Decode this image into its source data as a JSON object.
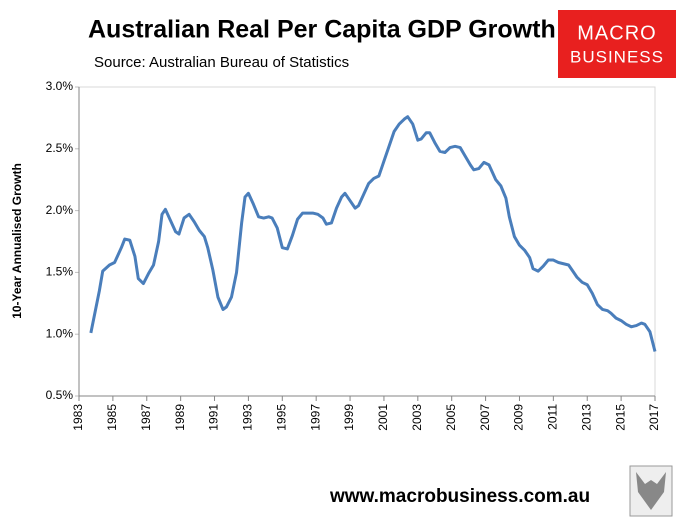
{
  "chart_data": {
    "type": "line",
    "title": "Australian Real Per Capita GDP Growth",
    "subtitle": "Source: Australian Bureau of Statistics",
    "y_label": "10-Year Annualised Growth",
    "x": [
      1983.7,
      1984.2,
      1984.4,
      1984.8,
      1985.1,
      1985.5,
      1985.7,
      1986.0,
      1986.3,
      1986.5,
      1986.8,
      1987.1,
      1987.4,
      1987.7,
      1987.9,
      1988.1,
      1988.4,
      1988.7,
      1988.9,
      1989.2,
      1989.5,
      1989.8,
      1990.1,
      1990.4,
      1990.6,
      1990.9,
      1991.2,
      1991.5,
      1991.7,
      1992.0,
      1992.3,
      1992.6,
      1992.8,
      1993.0,
      1993.3,
      1993.6,
      1993.9,
      1994.2,
      1994.4,
      1994.7,
      1995.0,
      1995.3,
      1995.6,
      1995.9,
      1996.2,
      1996.5,
      1996.8,
      1997.1,
      1997.4,
      1997.6,
      1997.9,
      1998.2,
      1998.5,
      1998.7,
      1999.0,
      1999.3,
      1999.5,
      1999.8,
      2000.1,
      2000.4,
      2000.7,
      2001.0,
      2001.3,
      2001.6,
      2001.9,
      2002.2,
      2002.4,
      2002.7,
      2003.0,
      2003.2,
      2003.5,
      2003.7,
      2004.0,
      2004.3,
      2004.6,
      2004.9,
      2005.2,
      2005.5,
      2005.8,
      2006.1,
      2006.3,
      2006.6,
      2006.9,
      2007.2,
      2007.4,
      2007.6,
      2007.9,
      2008.2,
      2008.4,
      2008.7,
      2009.0,
      2009.3,
      2009.6,
      2009.8,
      2010.1,
      2010.4,
      2010.7,
      2011.0,
      2011.3,
      2011.6,
      2011.9,
      2012.2,
      2012.4,
      2012.7,
      2013.0,
      2013.3,
      2013.6,
      2013.9,
      2014.2,
      2014.4,
      2014.7,
      2015.0,
      2015.3,
      2015.6,
      2015.9,
      2016.2,
      2016.4,
      2016.7,
      2017.0
    ],
    "series": [
      {
        "color": "#4a7ebb",
        "values": [
          1.01,
          1.35,
          1.51,
          1.56,
          1.58,
          1.7,
          1.77,
          1.76,
          1.63,
          1.45,
          1.41,
          1.49,
          1.56,
          1.75,
          1.97,
          2.01,
          1.92,
          1.83,
          1.81,
          1.94,
          1.97,
          1.91,
          1.84,
          1.79,
          1.7,
          1.52,
          1.3,
          1.2,
          1.22,
          1.3,
          1.5,
          1.9,
          2.11,
          2.14,
          2.05,
          1.95,
          1.94,
          1.95,
          1.94,
          1.86,
          1.7,
          1.69,
          1.8,
          1.93,
          1.98,
          1.98,
          1.98,
          1.97,
          1.94,
          1.89,
          1.9,
          2.02,
          2.11,
          2.14,
          2.08,
          2.02,
          2.04,
          2.13,
          2.22,
          2.26,
          2.28,
          2.4,
          2.52,
          2.64,
          2.7,
          2.74,
          2.76,
          2.7,
          2.57,
          2.58,
          2.63,
          2.63,
          2.55,
          2.48,
          2.47,
          2.51,
          2.52,
          2.51,
          2.44,
          2.37,
          2.33,
          2.34,
          2.39,
          2.37,
          2.31,
          2.25,
          2.2,
          2.1,
          1.95,
          1.79,
          1.72,
          1.68,
          1.62,
          1.53,
          1.51,
          1.55,
          1.6,
          1.6,
          1.58,
          1.57,
          1.56,
          1.5,
          1.46,
          1.42,
          1.4,
          1.33,
          1.24,
          1.2,
          1.19,
          1.17,
          1.13,
          1.11,
          1.08,
          1.06,
          1.07,
          1.09,
          1.08,
          1.02,
          0.86
        ]
      }
    ],
    "xlim": [
      1983,
      2017
    ],
    "xticks": [
      1983,
      1985,
      1987,
      1989,
      1991,
      1993,
      1995,
      1997,
      1999,
      2001,
      2003,
      2005,
      2007,
      2009,
      2011,
      2013,
      2015,
      2017
    ],
    "ylim": [
      0.5,
      3.0
    ],
    "yticks": [
      {
        "value": 0.5,
        "label": "0.5%"
      },
      {
        "value": 1.0,
        "label": "1.0%"
      },
      {
        "value": 1.5,
        "label": "1.5%"
      },
      {
        "value": 2.0,
        "label": "2.0%"
      },
      {
        "value": 2.5,
        "label": "2.5%"
      },
      {
        "value": 3.0,
        "label": "3.0%"
      }
    ],
    "grid": false
  },
  "logo": {
    "line1": "MACRO",
    "line2": "BUSINESS"
  },
  "footer": "www.macrobusiness.com.au"
}
